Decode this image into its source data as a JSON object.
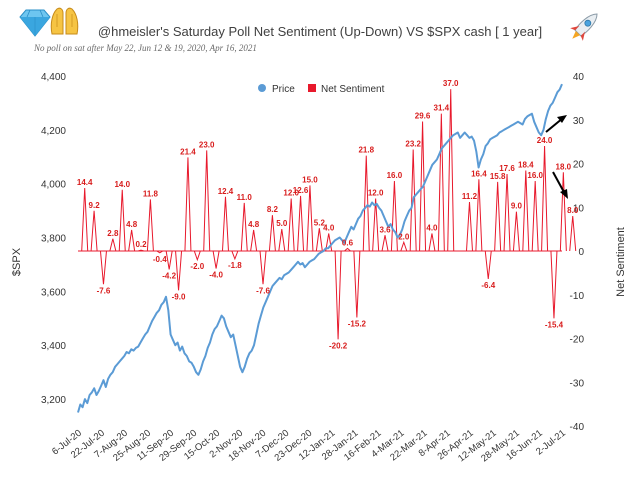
{
  "chart_data": {
    "type": "line",
    "title": "@hmeisler's Saturday Poll Net Sentiment (Up-Down) VS $SPX  cash [ 1 year]",
    "subtitle": "No poll on sat after May 22, Jun 12 & 19, 2020, Apr 16, 2021",
    "ylabel": "$SPX",
    "y2label": "Net Sentiment",
    "ylim": [
      3100,
      4400
    ],
    "y2lim": [
      -40,
      40
    ],
    "yticks": [
      "3,200",
      "3,400",
      "3,600",
      "3,800",
      "4,000",
      "4,200",
      "4,400"
    ],
    "y2ticks": [
      "-40",
      "-30",
      "-20",
      "-10",
      "0",
      "10",
      "20",
      "30",
      "40"
    ],
    "x_ticks": [
      "6-Jul-20",
      "22-Jul-20",
      "7-Aug-20",
      "25-Aug-20",
      "11-Sep-20",
      "29-Sep-20",
      "15-Oct-20",
      "2-Nov-20",
      "18-Nov-20",
      "7-Dec-20",
      "23-Dec-20",
      "12-Jan-21",
      "28-Jan-21",
      "16-Feb-21",
      "4-Mar-21",
      "22-Mar-21",
      "8-Apr-21",
      "26-Apr-21",
      "12-May-21",
      "28-May-21",
      "16-Jun-21",
      "2-Jul-21"
    ],
    "legend": [
      "Price",
      "Net Sentiment"
    ],
    "legend_position": "top",
    "colors": {
      "price": "#5b9bd5",
      "sentiment": "#e8192c",
      "labels": "#d81c1c"
    },
    "series": [
      {
        "name": "Price",
        "x_range": [
          "2020-07-06",
          "2021-07-02"
        ],
        "values": [
          3150,
          3180,
          3170,
          3200,
          3185,
          3215,
          3225,
          3240,
          3215,
          3230,
          3250,
          3270,
          3245,
          3275,
          3290,
          3300,
          3320,
          3330,
          3340,
          3350,
          3360,
          3375,
          3370,
          3385,
          3380,
          3390,
          3395,
          3410,
          3425,
          3440,
          3450,
          3470,
          3490,
          3505,
          3520,
          3530,
          3550,
          3560,
          3580,
          3530,
          3440,
          3420,
          3400,
          3410,
          3380,
          3395,
          3370,
          3360,
          3340,
          3335,
          3320,
          3300,
          3290,
          3310,
          3340,
          3360,
          3390,
          3410,
          3440,
          3460,
          3470,
          3490,
          3510,
          3500,
          3470,
          3450,
          3430,
          3440,
          3400,
          3360,
          3320,
          3300,
          3320,
          3350,
          3370,
          3380,
          3400,
          3440,
          3480,
          3510,
          3540,
          3560,
          3580,
          3600,
          3620,
          3630,
          3640,
          3650,
          3645,
          3660,
          3665,
          3670,
          3680,
          3690,
          3700,
          3710,
          3700,
          3705,
          3690,
          3700,
          3710,
          3715,
          3720,
          3730,
          3740,
          3745,
          3750,
          3760,
          3760,
          3770,
          3780,
          3790,
          3795,
          3800,
          3790,
          3780,
          3800,
          3820,
          3840,
          3830,
          3850,
          3870,
          3880,
          3900,
          3910,
          3920,
          3915,
          3930,
          3920,
          3925,
          3910,
          3900,
          3880,
          3860,
          3840,
          3850,
          3830,
          3820,
          3800,
          3810,
          3830,
          3860,
          3880,
          3900,
          3910,
          3950,
          3960,
          3970,
          3980,
          3990,
          4010,
          4030,
          4050,
          4070,
          4080,
          4090,
          4110,
          4130,
          4140,
          4150,
          4160,
          4170,
          4180,
          4185,
          4190,
          4170,
          4180,
          4190,
          4180,
          4170,
          4175,
          4160,
          4120,
          4060,
          4090,
          4110,
          4140,
          4150,
          4165,
          4170,
          4175,
          4180,
          4190,
          4195,
          4200,
          4205,
          4210,
          4215,
          4220,
          4225,
          4230,
          4225,
          4220,
          4240,
          4250,
          4255,
          4260,
          4230,
          4210,
          4190,
          4180,
          4200,
          4240,
          4270,
          4290,
          4300,
          4320,
          4340,
          4350,
          4370
        ]
      },
      {
        "name": "Net Sentiment",
        "points": [
          {
            "date": "2020-07-11",
            "value": 14.4
          },
          {
            "date": "2020-07-18",
            "value": 9.2
          },
          {
            "date": "2020-07-25",
            "value": -7.6
          },
          {
            "date": "2020-08-01",
            "value": 2.8
          },
          {
            "date": "2020-08-08",
            "value": 14.0
          },
          {
            "date": "2020-08-15",
            "value": 4.8
          },
          {
            "date": "2020-08-22",
            "value": 0.2
          },
          {
            "date": "2020-08-29",
            "value": 11.8
          },
          {
            "date": "2020-09-05",
            "value": -0.4
          },
          {
            "date": "2020-09-12",
            "value": -4.2
          },
          {
            "date": "2020-09-19",
            "value": -9.0
          },
          {
            "date": "2020-09-26",
            "value": 21.4
          },
          {
            "date": "2020-10-03",
            "value": -2.0
          },
          {
            "date": "2020-10-10",
            "value": 23.0
          },
          {
            "date": "2020-10-17",
            "value": -4.0
          },
          {
            "date": "2020-10-24",
            "value": 12.4
          },
          {
            "date": "2020-10-31",
            "value": -1.8
          },
          {
            "date": "2020-11-07",
            "value": 11.0
          },
          {
            "date": "2020-11-14",
            "value": 4.8
          },
          {
            "date": "2020-11-21",
            "value": -7.6
          },
          {
            "date": "2020-11-28",
            "value": 8.2
          },
          {
            "date": "2020-12-05",
            "value": 5.0
          },
          {
            "date": "2020-12-12",
            "value": 12.0
          },
          {
            "date": "2020-12-19",
            "value": 12.6
          },
          {
            "date": "2020-12-26",
            "value": 15.0
          },
          {
            "date": "2021-01-02",
            "value": 5.2
          },
          {
            "date": "2021-01-09",
            "value": 4.0
          },
          {
            "date": "2021-01-16",
            "value": -20.2
          },
          {
            "date": "2021-01-23",
            "value": 0.6
          },
          {
            "date": "2021-01-30",
            "value": -15.2
          },
          {
            "date": "2021-02-06",
            "value": 21.8
          },
          {
            "date": "2021-02-13",
            "value": 12.0
          },
          {
            "date": "2021-02-20",
            "value": 3.6
          },
          {
            "date": "2021-02-27",
            "value": 16.0
          },
          {
            "date": "2021-03-06",
            "value": 2.0
          },
          {
            "date": "2021-03-13",
            "value": 23.2
          },
          {
            "date": "2021-03-20",
            "value": 29.6
          },
          {
            "date": "2021-03-27",
            "value": 4.0
          },
          {
            "date": "2021-04-03",
            "value": 31.4
          },
          {
            "date": "2021-04-10",
            "value": 37.0
          },
          {
            "date": "2021-04-24",
            "value": 11.2
          },
          {
            "date": "2021-05-01",
            "value": 16.4
          },
          {
            "date": "2021-05-08",
            "value": -6.4
          },
          {
            "date": "2021-05-15",
            "value": 15.8
          },
          {
            "date": "2021-05-22",
            "value": 17.6
          },
          {
            "date": "2021-05-29",
            "value": 9.0
          },
          {
            "date": "2021-06-05",
            "value": 18.4
          },
          {
            "date": "2021-06-12",
            "value": 16.0
          },
          {
            "date": "2021-06-19",
            "value": 24.0
          },
          {
            "date": "2021-06-26",
            "value": -15.4
          },
          {
            "date": "2021-07-03",
            "value": 18.0
          },
          {
            "date": "2021-07-10",
            "value": 8.0
          }
        ]
      }
    ],
    "annotations": [
      {
        "type": "arrow",
        "direction": "up-right",
        "color": "#000000"
      },
      {
        "type": "arrow",
        "direction": "down-right",
        "color": "#000000"
      }
    ]
  },
  "header_icons": {
    "left": [
      "gem-icon",
      "raising-hands-icon"
    ],
    "right": [
      "rocket-icon"
    ]
  }
}
